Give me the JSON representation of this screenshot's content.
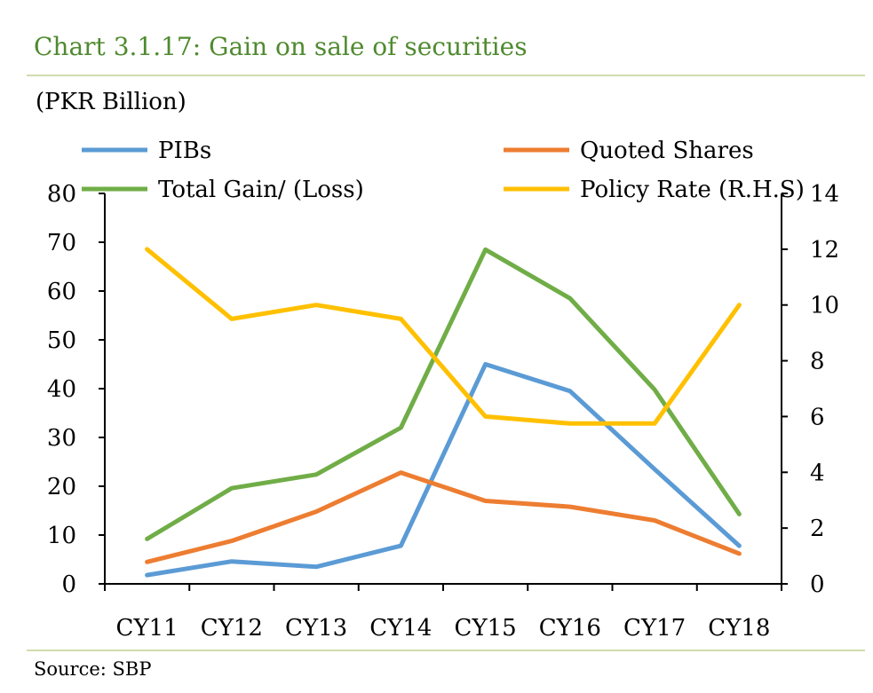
{
  "header": {
    "title": "Chart 3.1.17: Gain on sale of securities",
    "unit": "(PKR Billion)"
  },
  "footer": {
    "source": "Source:  SBP"
  },
  "chart_data": {
    "type": "line",
    "title": "Chart 3.1.17: Gain on sale of securities",
    "ylabel": "(PKR Billion)",
    "categories": [
      "CY11",
      "CY12",
      "CY13",
      "CY14",
      "CY15",
      "CY16",
      "CY17",
      "CY18"
    ],
    "ylim_left": [
      0,
      80
    ],
    "yticks_left": [
      0,
      10,
      20,
      30,
      40,
      50,
      60,
      70,
      80
    ],
    "ylim_right": [
      0,
      14
    ],
    "yticks_right": [
      0,
      2,
      4,
      6,
      8,
      10,
      12,
      14
    ],
    "grid": false,
    "legend_position": "top",
    "series": [
      {
        "name": "PIBs",
        "axis": "left",
        "color": "#5b9bd5",
        "values": [
          1.8,
          4.6,
          3.5,
          7.8,
          45.0,
          39.5,
          23.5,
          7.8
        ]
      },
      {
        "name": "Quoted Shares",
        "axis": "left",
        "color": "#ed7d31",
        "values": [
          4.5,
          8.8,
          14.8,
          22.8,
          17.0,
          15.8,
          13.0,
          6.2
        ]
      },
      {
        "name": "Total Gain/ (Loss)",
        "axis": "left",
        "color": "#70ad47",
        "values": [
          9.2,
          19.6,
          22.4,
          32.0,
          68.5,
          58.5,
          39.8,
          14.3
        ]
      },
      {
        "name": "Policy Rate (R.H.S)",
        "axis": "right",
        "color": "#ffc000",
        "values": [
          12.0,
          9.5,
          10.0,
          9.5,
          6.0,
          5.75,
          5.75,
          10.0
        ]
      }
    ]
  }
}
